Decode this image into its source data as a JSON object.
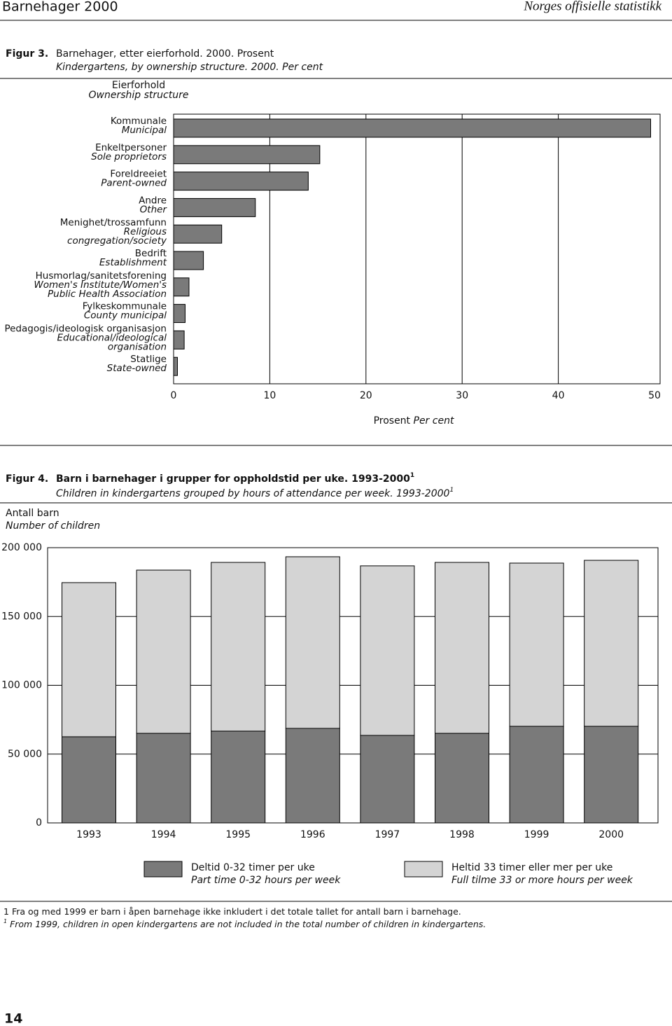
{
  "header": {
    "left": "Barnehager 2000",
    "right": "Norges offisielle statistikk"
  },
  "chart_data": [
    {
      "type": "hbar",
      "figure_label": "Figur 3.",
      "title": "Barnehager, etter eierforhold. 2000. Prosent",
      "subtitle": "Kindergartens, by ownership structure. 2000. Per cent",
      "y_label": "Eierforhold",
      "y_label_en": "Ownership structure",
      "x_label": "Prosent",
      "x_label_en": "Per cent",
      "categories": [
        "Kommunale",
        "Enkeltpersoner",
        "Foreldreeiet",
        "Andre",
        "Menighet/trossamfunn",
        "Bedrift",
        "Husmorlag/sanitetsforening",
        "Fylkeskommunale",
        "Pedagogis/ideologisk organisasjon",
        "Statlige"
      ],
      "categories_en": [
        "Municipal",
        "Sole proprietors",
        "Parent-owned",
        "Other",
        "Religious congregation/society",
        "Establishment",
        "Women's Institute/Women's Public Health Association",
        "County municipal",
        "Educational/ideological organisation",
        "State-owned"
      ],
      "values": [
        49.6,
        15.2,
        14.0,
        8.5,
        5.0,
        3.1,
        1.6,
        1.2,
        1.1,
        0.4
      ],
      "color": "#7a7a7a",
      "xlim": [
        0,
        50
      ],
      "xticks": [
        0,
        10,
        20,
        30,
        40,
        50
      ],
      "grid": true
    },
    {
      "type": "stacked_bar",
      "figure_label": "Figur 4.",
      "title": "Barn i barnehager i grupper for oppholdstid per uke. 1993-2000",
      "title_note": "1",
      "subtitle": "Children in kindergartens grouped by hours of attendance per week. 1993-2000",
      "subtitle_note": "1",
      "y_label": "Antall barn",
      "y_label_en": "Number of children",
      "categories": [
        "1993",
        "1994",
        "1995",
        "1996",
        "1997",
        "1998",
        "1999",
        "2000"
      ],
      "series": [
        {
          "name": "Deltid 0-32 timer per uke",
          "name_en": "Part time 0-32 hours per week",
          "color": "#7a7a7a",
          "values": [
            62600,
            65100,
            66700,
            68700,
            63600,
            65100,
            70200,
            70200
          ]
        },
        {
          "name": "Heltid 33 timer eller mer per uke",
          "name_en": "Full tilme 33 or more hours per week",
          "color": "#d4d4d4",
          "values": [
            112000,
            118600,
            122600,
            124700,
            123200,
            124200,
            118600,
            120600
          ]
        }
      ],
      "ylim": [
        0,
        200000
      ],
      "yticks": [
        0,
        {
          "value": 50000,
          "label": "50 000"
        },
        {
          "value": 100000,
          "label": "100 000"
        },
        {
          "value": 150000,
          "label": "150 000"
        },
        {
          "value": 200000,
          "label": "200 000"
        }
      ],
      "grid": true
    }
  ],
  "footnotes": [
    {
      "marker": "1",
      "text": "Fra og med 1999 er barn i åpen barnehage ikke inkludert i det totale tallet for antall barn i barnehage."
    },
    {
      "marker": "1",
      "text": "From 1999, children in open kindergartens are not included in the total number of children in kindergartens."
    }
  ],
  "page_number": "14"
}
